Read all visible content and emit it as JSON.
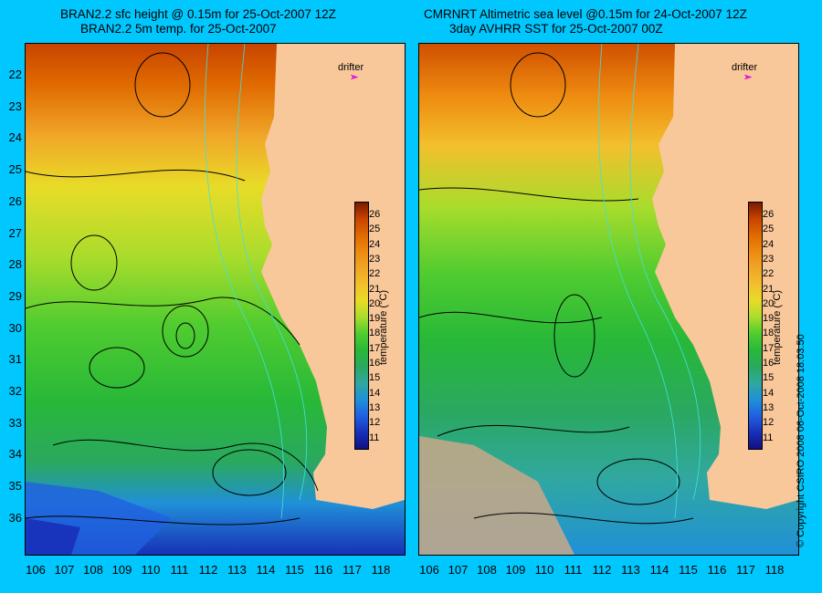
{
  "left_panel": {
    "title_line1": "BRAN2.2 sfc height @ 0.15m for 25-Oct-2007 12Z",
    "title_line2": "BRAN2.2 5m temp. for 25-Oct-2007",
    "drifter_label": "drifter"
  },
  "right_panel": {
    "title_line1": "CMRNRT Altimetric sea level  @0.15m  for 24-Oct-2007 12Z",
    "title_line2": "3day AVHRR SST for 25-Oct-2007 00Z",
    "drifter_label": "drifter"
  },
  "latitude_labels": [
    "22",
    "23",
    "24",
    "25",
    "26",
    "27",
    "28",
    "29",
    "30",
    "31",
    "32",
    "33",
    "34",
    "35",
    "36"
  ],
  "longitude_labels": [
    "106",
    "107",
    "108",
    "109",
    "110",
    "111",
    "112",
    "113",
    "114",
    "115",
    "116",
    "117",
    "118"
  ],
  "colorbar": {
    "title": "temperature (°C)",
    "ticks": [
      "26",
      "25",
      "24",
      "23",
      "22",
      "21",
      "20",
      "19",
      "18",
      "17",
      "16",
      "15",
      "14",
      "13",
      "12",
      "11"
    ],
    "colors": [
      "#7a1a00",
      "#c84400",
      "#e06a00",
      "#ee8a10",
      "#f0a628",
      "#f2c02c",
      "#e8dc28",
      "#a8dc2c",
      "#50cc30",
      "#28b838",
      "#2aa860",
      "#30a8a0",
      "#2090d8",
      "#2060e0",
      "#1830b8",
      "#101080"
    ]
  },
  "copyright": "© Copyright CSIRO 2008    06-Oct-2008 18:03:50",
  "colors": {
    "background": "#00c8ff",
    "land": "#f9c89a",
    "contour": "#000000",
    "bathymetry": "#40e0e0",
    "drifter": "#e000e0"
  }
}
